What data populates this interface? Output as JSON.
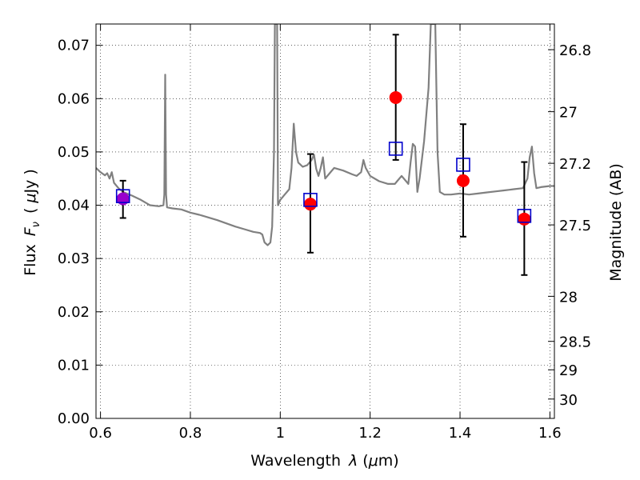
{
  "chart_data": {
    "type": "scatter",
    "xlabel_prefix": "Wavelength",
    "xlabel_symbol": "λ",
    "xlabel_unit_open": "(",
    "xlabel_unit_mu": "μ",
    "xlabel_unit_rest": "m)",
    "ylabel_prefix": "Flux",
    "ylabel_symbol": "F",
    "ylabel_symbol_sub": "ν",
    "ylabel_unit_open": "(",
    "ylabel_unit_mu": "μ",
    "ylabel_unit_rest": "Jy",
    "ylabel_unit_close": ")",
    "ylabel_right": "Magnitude (AB)",
    "xlim": [
      0.59,
      1.61
    ],
    "ylim": [
      0.0,
      0.074
    ],
    "grid": true,
    "x_ticks": [
      {
        "value": 0.6,
        "label": "0.6"
      },
      {
        "value": 0.8,
        "label": "0.8"
      },
      {
        "value": 1.0,
        "label": "1"
      },
      {
        "value": 1.2,
        "label": "1.2"
      },
      {
        "value": 1.4,
        "label": "1.4"
      },
      {
        "value": 1.6,
        "label": "1.6"
      }
    ],
    "y_ticks": [
      {
        "value": 0.0,
        "label": "0.00"
      },
      {
        "value": 0.01,
        "label": "0.01"
      },
      {
        "value": 0.02,
        "label": "0.02"
      },
      {
        "value": 0.03,
        "label": "0.03"
      },
      {
        "value": 0.04,
        "label": "0.04"
      },
      {
        "value": 0.05,
        "label": "0.05"
      },
      {
        "value": 0.06,
        "label": "0.06"
      },
      {
        "value": 0.07,
        "label": "0.07"
      }
    ],
    "right_ticks": [
      {
        "value": 26.8,
        "label": "26.8"
      },
      {
        "value": 27.0,
        "label": "27"
      },
      {
        "value": 27.2,
        "label": "27.2"
      },
      {
        "value": 27.5,
        "label": "27.5"
      },
      {
        "value": 28.0,
        "label": "28"
      },
      {
        "value": 28.5,
        "label": "28.5"
      },
      {
        "value": 29.0,
        "label": "29"
      },
      {
        "value": 30.0,
        "label": "30"
      }
    ],
    "series": [
      {
        "marker": "circle",
        "color": "#ff0000",
        "points": [
          {
            "x": 0.65,
            "y": 0.0412
          },
          {
            "x": 1.067,
            "y": 0.0402
          },
          {
            "x": 1.257,
            "y": 0.0602
          },
          {
            "x": 1.407,
            "y": 0.0446
          },
          {
            "x": 1.543,
            "y": 0.0374
          }
        ]
      },
      {
        "marker": "square",
        "color": "#0000cc",
        "points": [
          {
            "x": 0.65,
            "y": 0.0417
          },
          {
            "x": 1.067,
            "y": 0.041
          },
          {
            "x": 1.257,
            "y": 0.0506
          },
          {
            "x": 1.407,
            "y": 0.0476
          },
          {
            "x": 1.543,
            "y": 0.038
          }
        ]
      },
      {
        "marker": "errorbar",
        "color": "#000000",
        "points": [
          {
            "x": 0.65,
            "low": 0.0376,
            "high": 0.0446
          },
          {
            "x": 1.067,
            "low": 0.0311,
            "high": 0.0496
          },
          {
            "x": 1.257,
            "low": 0.0485,
            "high": 0.072
          },
          {
            "x": 1.407,
            "low": 0.0341,
            "high": 0.0552
          },
          {
            "x": 1.543,
            "low": 0.0269,
            "high": 0.0481
          }
        ]
      },
      {
        "marker": "line",
        "color": "#808080",
        "points": [
          [
            0.59,
            0.047
          ],
          [
            0.6,
            0.0462
          ],
          [
            0.61,
            0.0456
          ],
          [
            0.615,
            0.046
          ],
          [
            0.62,
            0.045
          ],
          [
            0.625,
            0.0462
          ],
          [
            0.63,
            0.0442
          ],
          [
            0.64,
            0.0432
          ],
          [
            0.65,
            0.0425
          ],
          [
            0.67,
            0.0418
          ],
          [
            0.69,
            0.041
          ],
          [
            0.71,
            0.04
          ],
          [
            0.73,
            0.0398
          ],
          [
            0.74,
            0.04
          ],
          [
            0.742,
            0.042
          ],
          [
            0.744,
            0.0645
          ],
          [
            0.746,
            0.042
          ],
          [
            0.748,
            0.0396
          ],
          [
            0.76,
            0.0394
          ],
          [
            0.78,
            0.0392
          ],
          [
            0.8,
            0.0386
          ],
          [
            0.82,
            0.0382
          ],
          [
            0.84,
            0.0377
          ],
          [
            0.86,
            0.0372
          ],
          [
            0.88,
            0.0366
          ],
          [
            0.9,
            0.036
          ],
          [
            0.92,
            0.0355
          ],
          [
            0.94,
            0.035
          ],
          [
            0.955,
            0.0348
          ],
          [
            0.96,
            0.0345
          ],
          [
            0.965,
            0.033
          ],
          [
            0.972,
            0.0325
          ],
          [
            0.978,
            0.033
          ],
          [
            0.982,
            0.036
          ],
          [
            0.986,
            0.05
          ],
          [
            0.988,
            0.074
          ],
          [
            0.993,
            0.074
          ],
          [
            0.995,
            0.04
          ],
          [
            1.0,
            0.041
          ],
          [
            1.01,
            0.042
          ],
          [
            1.02,
            0.043
          ],
          [
            1.025,
            0.047
          ],
          [
            1.03,
            0.0553
          ],
          [
            1.035,
            0.05
          ],
          [
            1.04,
            0.048
          ],
          [
            1.05,
            0.0472
          ],
          [
            1.06,
            0.0475
          ],
          [
            1.07,
            0.0485
          ],
          [
            1.075,
            0.0495
          ],
          [
            1.08,
            0.0468
          ],
          [
            1.085,
            0.0455
          ],
          [
            1.09,
            0.047
          ],
          [
            1.095,
            0.049
          ],
          [
            1.1,
            0.045
          ],
          [
            1.11,
            0.046
          ],
          [
            1.12,
            0.047
          ],
          [
            1.14,
            0.0465
          ],
          [
            1.16,
            0.0458
          ],
          [
            1.17,
            0.0455
          ],
          [
            1.18,
            0.0462
          ],
          [
            1.185,
            0.0485
          ],
          [
            1.19,
            0.047
          ],
          [
            1.2,
            0.0455
          ],
          [
            1.22,
            0.0445
          ],
          [
            1.24,
            0.044
          ],
          [
            1.255,
            0.044
          ],
          [
            1.26,
            0.0445
          ],
          [
            1.27,
            0.0455
          ],
          [
            1.28,
            0.0445
          ],
          [
            1.285,
            0.044
          ],
          [
            1.29,
            0.048
          ],
          [
            1.295,
            0.0515
          ],
          [
            1.3,
            0.051
          ],
          [
            1.305,
            0.0425
          ],
          [
            1.31,
            0.045
          ],
          [
            1.32,
            0.052
          ],
          [
            1.33,
            0.062
          ],
          [
            1.335,
            0.074
          ],
          [
            1.345,
            0.074
          ],
          [
            1.35,
            0.05
          ],
          [
            1.355,
            0.0425
          ],
          [
            1.365,
            0.042
          ],
          [
            1.38,
            0.042
          ],
          [
            1.4,
            0.0422
          ],
          [
            1.42,
            0.042
          ],
          [
            1.44,
            0.0422
          ],
          [
            1.46,
            0.0424
          ],
          [
            1.48,
            0.0426
          ],
          [
            1.5,
            0.0428
          ],
          [
            1.52,
            0.043
          ],
          [
            1.54,
            0.0432
          ],
          [
            1.55,
            0.045
          ],
          [
            1.555,
            0.049
          ],
          [
            1.56,
            0.051
          ],
          [
            1.565,
            0.046
          ],
          [
            1.57,
            0.0432
          ],
          [
            1.58,
            0.0434
          ],
          [
            1.6,
            0.0436
          ],
          [
            1.61,
            0.0436
          ]
        ]
      }
    ]
  }
}
